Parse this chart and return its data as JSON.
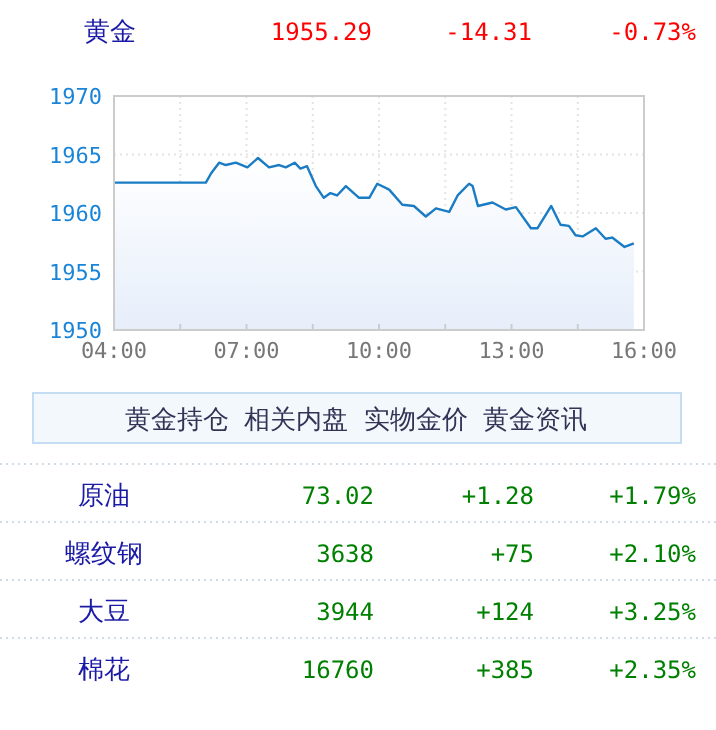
{
  "chart_data": {
    "type": "area",
    "title": "黄金",
    "color": "#1a7cc4",
    "x": [
      4,
      6.08,
      6.2,
      6.38,
      6.53,
      6.76,
      7.02,
      7.26,
      7.51,
      7.74,
      7.89,
      8.09,
      8.22,
      8.37,
      8.57,
      8.75,
      8.9,
      9.05,
      9.25,
      9.55,
      9.78,
      9.96,
      10.23,
      10.53,
      10.79,
      11.06,
      11.29,
      11.59,
      11.78,
      12.04,
      12.12,
      12.24,
      12.57,
      12.87,
      13.1,
      13.44,
      13.59,
      13.9,
      14.11,
      14.3,
      14.45,
      14.61,
      14.91,
      15.13,
      15.28,
      15.56,
      15.77
    ],
    "values": [
      1962.6,
      1962.6,
      1963.4,
      1964.3,
      1964.1,
      1964.3,
      1963.9,
      1964.7,
      1963.9,
      1964.1,
      1963.9,
      1964.3,
      1963.8,
      1964.0,
      1962.3,
      1961.3,
      1961.7,
      1961.5,
      1962.3,
      1961.3,
      1961.3,
      1962.5,
      1962.0,
      1960.7,
      1960.6,
      1959.7,
      1960.4,
      1960.1,
      1961.5,
      1962.5,
      1962.3,
      1960.6,
      1960.9,
      1960.3,
      1960.5,
      1958.7,
      1958.7,
      1960.6,
      1959.0,
      1958.9,
      1958.1,
      1958.0,
      1958.7,
      1957.8,
      1957.9,
      1957.1,
      1957.4
    ],
    "xlim": [
      4,
      16
    ],
    "ylim": [
      1950,
      1970
    ],
    "xticks": [
      {
        "value": 4,
        "label": "04:00"
      },
      {
        "value": 5.5,
        "label": null
      },
      {
        "value": 7,
        "label": "07:00"
      },
      {
        "value": 8.5,
        "label": null
      },
      {
        "value": 10,
        "label": "10:00"
      },
      {
        "value": 11.5,
        "label": null
      },
      {
        "value": 13,
        "label": "13:00"
      },
      {
        "value": 14.5,
        "label": null
      },
      {
        "value": 16,
        "label": "16:00"
      }
    ],
    "yticks": [
      1950,
      1955,
      1960,
      1965,
      1970
    ],
    "grid": true,
    "annotations": [
      "1955.29",
      "-14.31",
      "-0.73%",
      "黄金持仓 相关内盘 实物金价 黄金资讯",
      "原油",
      "73.02",
      "+1.28",
      "+1.79%",
      "螺纹钢",
      "3638",
      "+75",
      "+2.10%",
      "大豆",
      "3944",
      "+124",
      "+3.25%",
      "棉花",
      "16760",
      "+385",
      "+2.35%"
    ]
  }
}
